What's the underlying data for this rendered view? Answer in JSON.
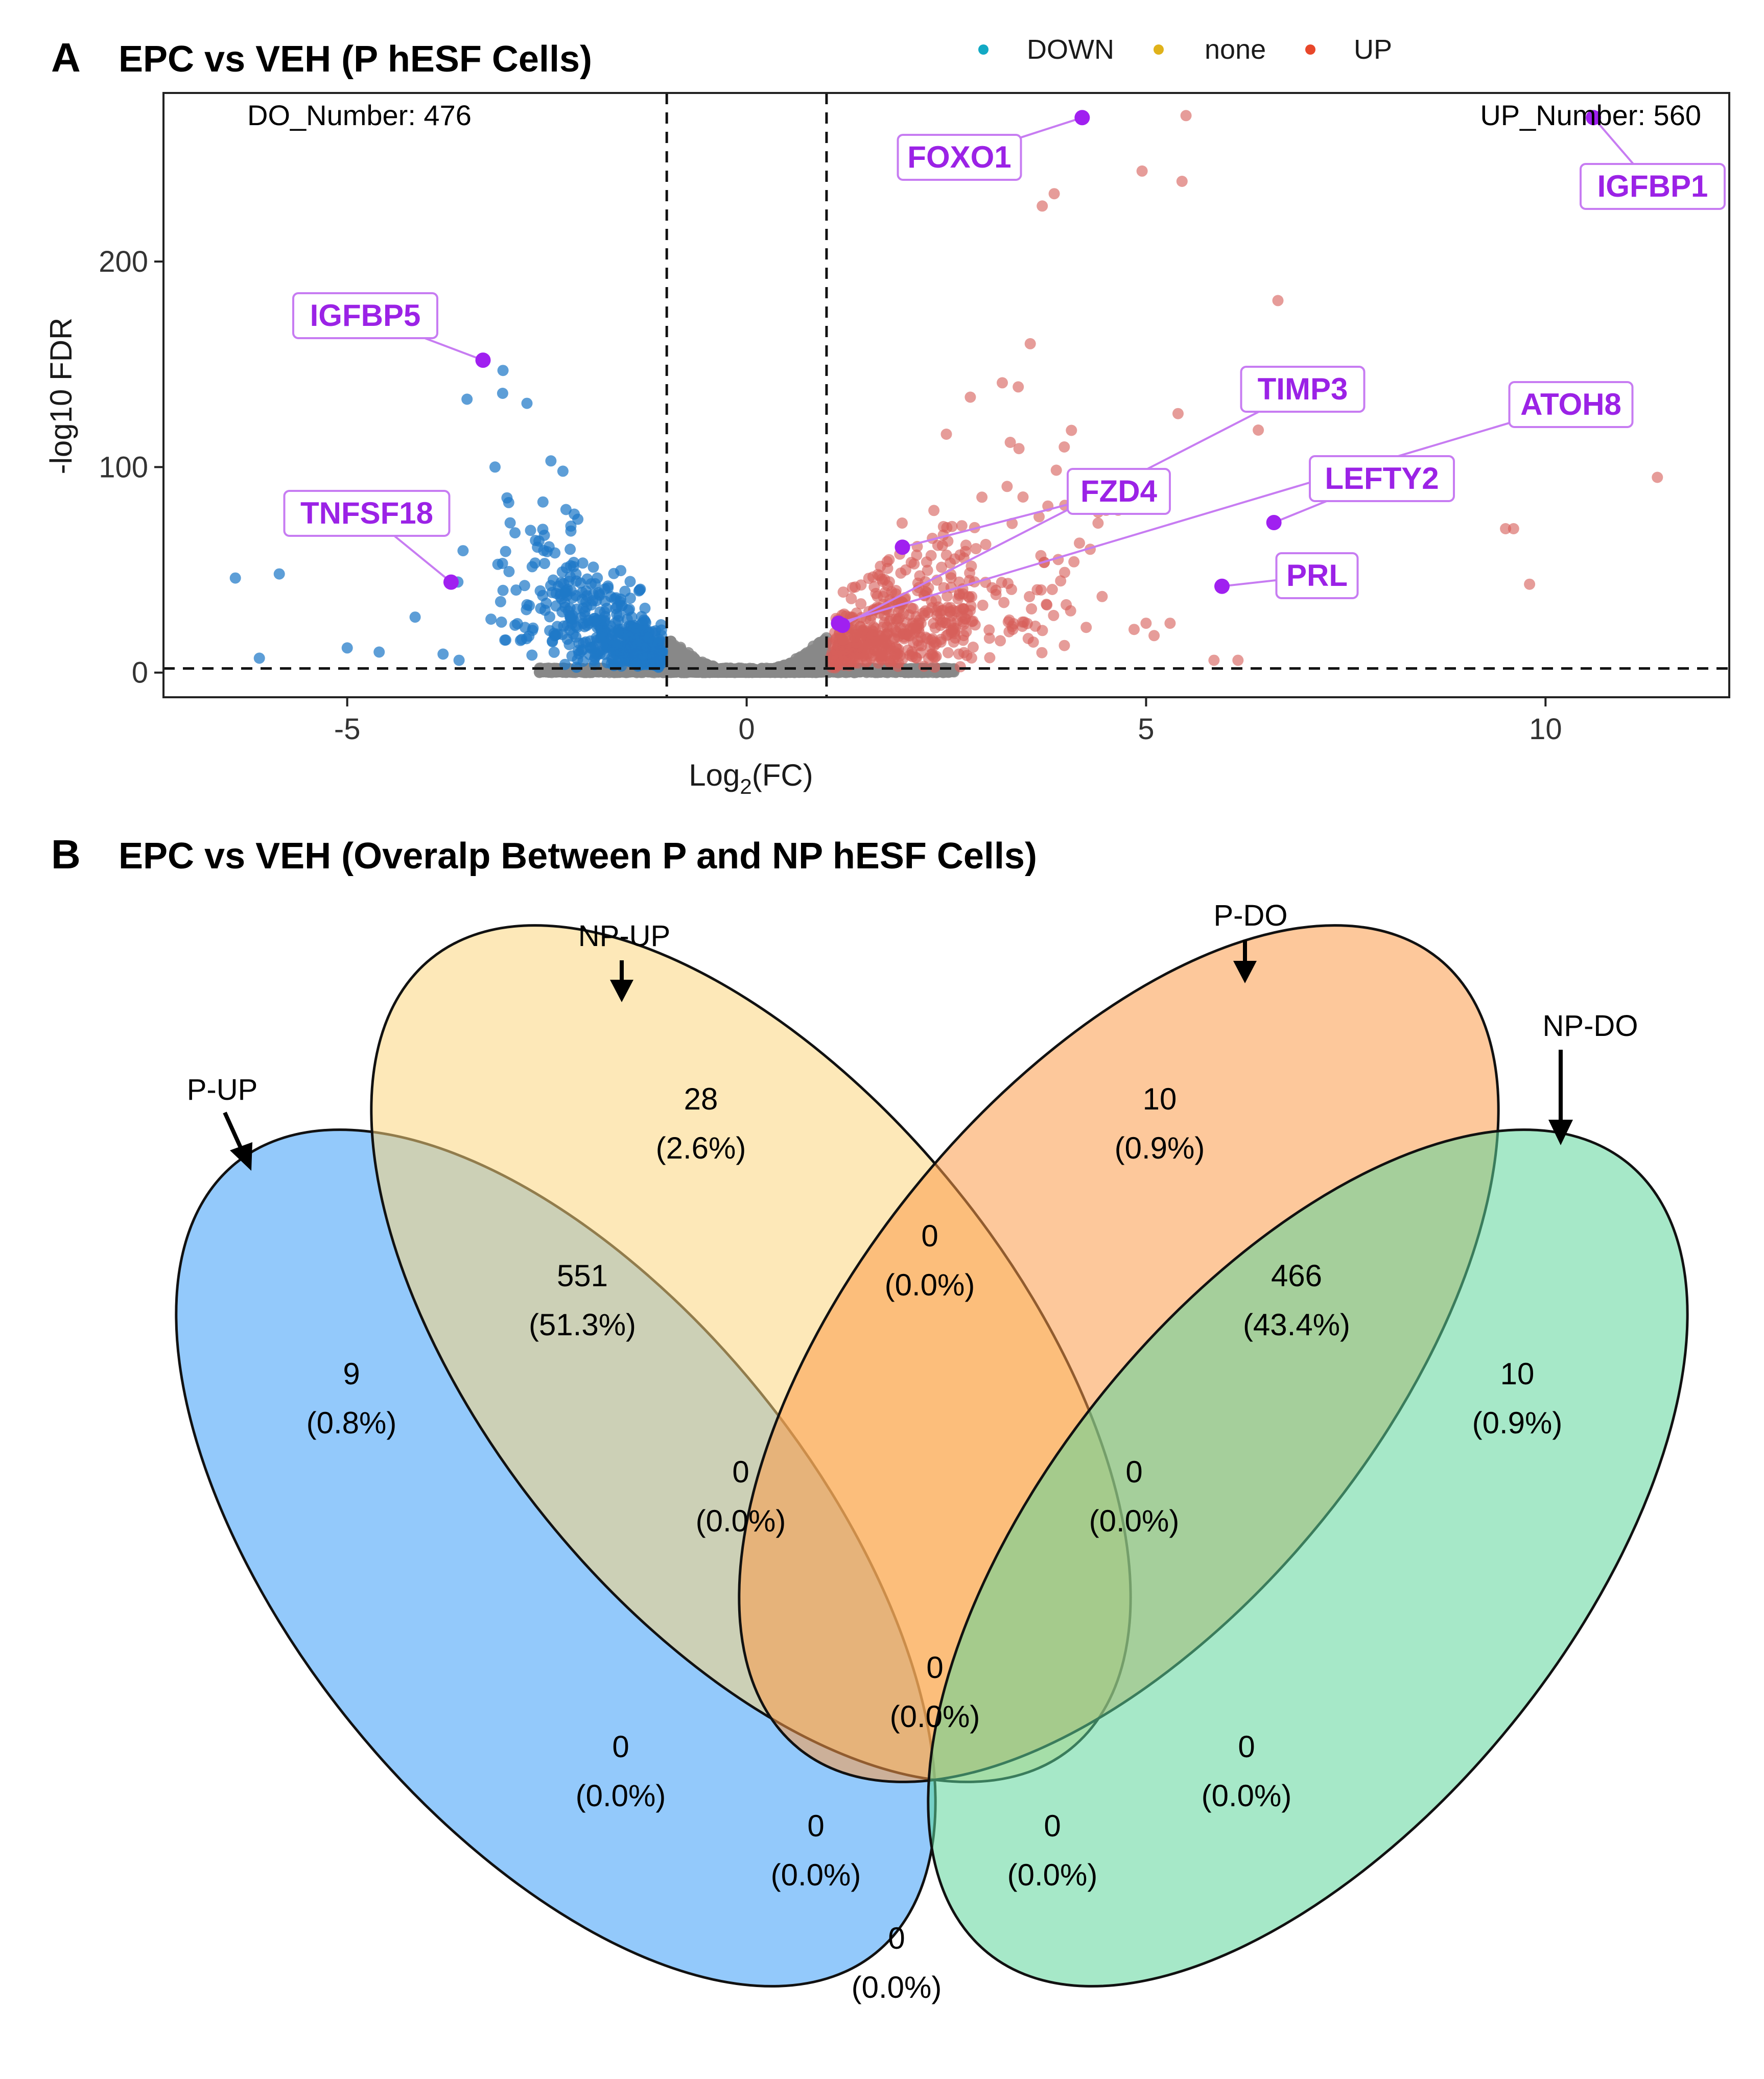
{
  "panel_a": {
    "letter": "A",
    "title": "EPC vs VEH  (P hESF Cells)"
  },
  "panel_b": {
    "letter": "B",
    "title": "EPC vs VEH (Overalp Between P and NP hESF Cells)"
  },
  "colors": {
    "DOWN": "#1f78c8",
    "none": "#888888",
    "UP": "#d7605a",
    "highlight": "#a020f0",
    "legend_DOWN": "#12a9c4",
    "legend_none": "#e0b21a",
    "legend_UP": "#e8472a"
  },
  "chart_data": [
    {
      "type": "scatter",
      "subtype": "volcano",
      "title": "EPC vs VEH  (P hESF Cells)",
      "xlabel_main": "Log",
      "xlabel_sub": "2",
      "xlabel_rest": "(FC)",
      "ylabel": "-log10 FDR",
      "xlim": [
        -7.3,
        12.3
      ],
      "ylim": [
        -12,
        282
      ],
      "x_ticks": [
        -5,
        0,
        5,
        10
      ],
      "x_tick_labels": [
        "-5",
        "0",
        "5",
        "10"
      ],
      "y_ticks": [
        0,
        100,
        200
      ],
      "y_tick_labels": [
        "0",
        "100",
        "200"
      ],
      "fc_thresholds": [
        -1,
        1
      ],
      "fdr_threshold": 2,
      "legend": [
        {
          "label": "DOWN",
          "color_key": "legend_DOWN"
        },
        {
          "label": "none",
          "color_key": "legend_none"
        },
        {
          "label": "UP",
          "color_key": "legend_UP"
        }
      ],
      "counts": {
        "down_text": "DO_Number: 476",
        "up_text": "UP_Number: 560"
      },
      "highlighted_genes": [
        {
          "gene": "FOXO1",
          "x": 4.2,
          "y": 270
        },
        {
          "gene": "IGFBP1",
          "x": 10.6,
          "y": 270
        },
        {
          "gene": "IGFBP5",
          "x": -3.3,
          "y": 152
        },
        {
          "gene": "TNFSF18",
          "x": -3.7,
          "y": 44
        },
        {
          "gene": "TIMP3",
          "x": 1.2,
          "y": 23
        },
        {
          "gene": "ATOH8",
          "x": 1.15,
          "y": 24
        },
        {
          "gene": "FZD4",
          "x": 1.95,
          "y": 61
        },
        {
          "gene": "LEFTY2",
          "x": 6.6,
          "y": 73
        },
        {
          "gene": "PRL",
          "x": 5.95,
          "y": 42
        }
      ],
      "extra_down_points": [
        {
          "x": -6.4,
          "y": 46
        },
        {
          "x": -5.85,
          "y": 48
        },
        {
          "x": -6.1,
          "y": 7
        },
        {
          "x": -5.0,
          "y": 12
        },
        {
          "x": -4.6,
          "y": 10
        },
        {
          "x": -4.15,
          "y": 27
        },
        {
          "x": -3.5,
          "y": 133
        },
        {
          "x": -3.05,
          "y": 147
        },
        {
          "x": -2.75,
          "y": 131
        },
        {
          "x": -3.15,
          "y": 100
        },
        {
          "x": -3.0,
          "y": 85
        },
        {
          "x": -3.8,
          "y": 9
        },
        {
          "x": -3.6,
          "y": 6
        },
        {
          "x": -2.45,
          "y": 103
        },
        {
          "x": -2.3,
          "y": 98
        },
        {
          "x": -2.55,
          "y": 83
        },
        {
          "x": -2.6,
          "y": 64
        },
        {
          "x": -2.9,
          "y": 68
        },
        {
          "x": -3.05,
          "y": 40
        },
        {
          "x": -2.75,
          "y": 33
        },
        {
          "x": -3.2,
          "y": 26
        }
      ],
      "extra_up_points": [
        {
          "x": 5.5,
          "y": 271
        },
        {
          "x": 3.85,
          "y": 233
        },
        {
          "x": 3.7,
          "y": 227
        },
        {
          "x": 4.95,
          "y": 244
        },
        {
          "x": 5.45,
          "y": 239
        },
        {
          "x": 6.65,
          "y": 181
        },
        {
          "x": 3.55,
          "y": 160
        },
        {
          "x": 5.4,
          "y": 126
        },
        {
          "x": 11.4,
          "y": 95
        },
        {
          "x": 9.5,
          "y": 70
        },
        {
          "x": 9.6,
          "y": 70
        },
        {
          "x": 9.8,
          "y": 43
        },
        {
          "x": 5.0,
          "y": 24
        },
        {
          "x": 5.3,
          "y": 24
        },
        {
          "x": 4.85,
          "y": 21
        },
        {
          "x": 5.1,
          "y": 18
        },
        {
          "x": 5.85,
          "y": 6
        },
        {
          "x": 6.15,
          "y": 6
        },
        {
          "x": 2.8,
          "y": 134
        },
        {
          "x": 3.2,
          "y": 141
        },
        {
          "x": 3.4,
          "y": 139
        },
        {
          "x": 2.5,
          "y": 116
        },
        {
          "x": 3.3,
          "y": 112
        },
        {
          "x": 4.4,
          "y": 78
        },
        {
          "x": 4.65,
          "y": 79
        },
        {
          "x": 4.3,
          "y": 60
        },
        {
          "x": 3.9,
          "y": 55
        },
        {
          "x": 4.45,
          "y": 37
        },
        {
          "x": 4.0,
          "y": 33
        },
        {
          "x": 4.25,
          "y": 22
        }
      ]
    },
    {
      "type": "venn",
      "title": "EPC vs VEH (Overalp Between P and NP hESF Cells)",
      "sets": [
        {
          "name": "P-UP",
          "color": "#3a9cf7"
        },
        {
          "name": "NP-UP",
          "color": "#fbd67e"
        },
        {
          "name": "P-DO",
          "color": "#fb9a48"
        },
        {
          "name": "NP-DO",
          "color": "#5dd59a"
        }
      ],
      "regions": [
        {
          "sets": [
            "P-UP"
          ],
          "count": "9",
          "percent": "(0.8%)"
        },
        {
          "sets": [
            "NP-UP"
          ],
          "count": "28",
          "percent": "(2.6%)"
        },
        {
          "sets": [
            "P-DO"
          ],
          "count": "10",
          "percent": "(0.9%)"
        },
        {
          "sets": [
            "NP-DO"
          ],
          "count": "10",
          "percent": "(0.9%)"
        },
        {
          "sets": [
            "P-UP",
            "NP-UP"
          ],
          "count": "551",
          "percent": "(51.3%)"
        },
        {
          "sets": [
            "NP-UP",
            "P-DO"
          ],
          "count": "0",
          "percent": "(0.0%)"
        },
        {
          "sets": [
            "P-DO",
            "NP-DO"
          ],
          "count": "466",
          "percent": "(43.4%)"
        },
        {
          "sets": [
            "P-UP",
            "NP-UP",
            "P-DO"
          ],
          "count": "0",
          "percent": "(0.0%)"
        },
        {
          "sets": [
            "NP-UP",
            "P-DO",
            "NP-DO"
          ],
          "count": "0",
          "percent": "(0.0%)"
        },
        {
          "sets": [
            "P-UP",
            "NP-UP",
            "P-DO",
            "NP-DO"
          ],
          "count": "0",
          "percent": "(0.0%)"
        },
        {
          "sets": [
            "P-UP",
            "P-DO"
          ],
          "count": "0",
          "percent": "(0.0%)"
        },
        {
          "sets": [
            "NP-UP",
            "NP-DO"
          ],
          "count": "0",
          "percent": "(0.0%)"
        },
        {
          "sets": [
            "P-UP",
            "P-DO",
            "NP-DO"
          ],
          "count": "0",
          "percent": "(0.0%)"
        },
        {
          "sets": [
            "P-UP",
            "NP-UP",
            "NP-DO"
          ],
          "count": "0",
          "percent": "(0.0%)"
        },
        {
          "sets": [
            "P-UP",
            "NP-DO"
          ],
          "count": "0",
          "percent": "(0.0%)"
        }
      ]
    }
  ]
}
